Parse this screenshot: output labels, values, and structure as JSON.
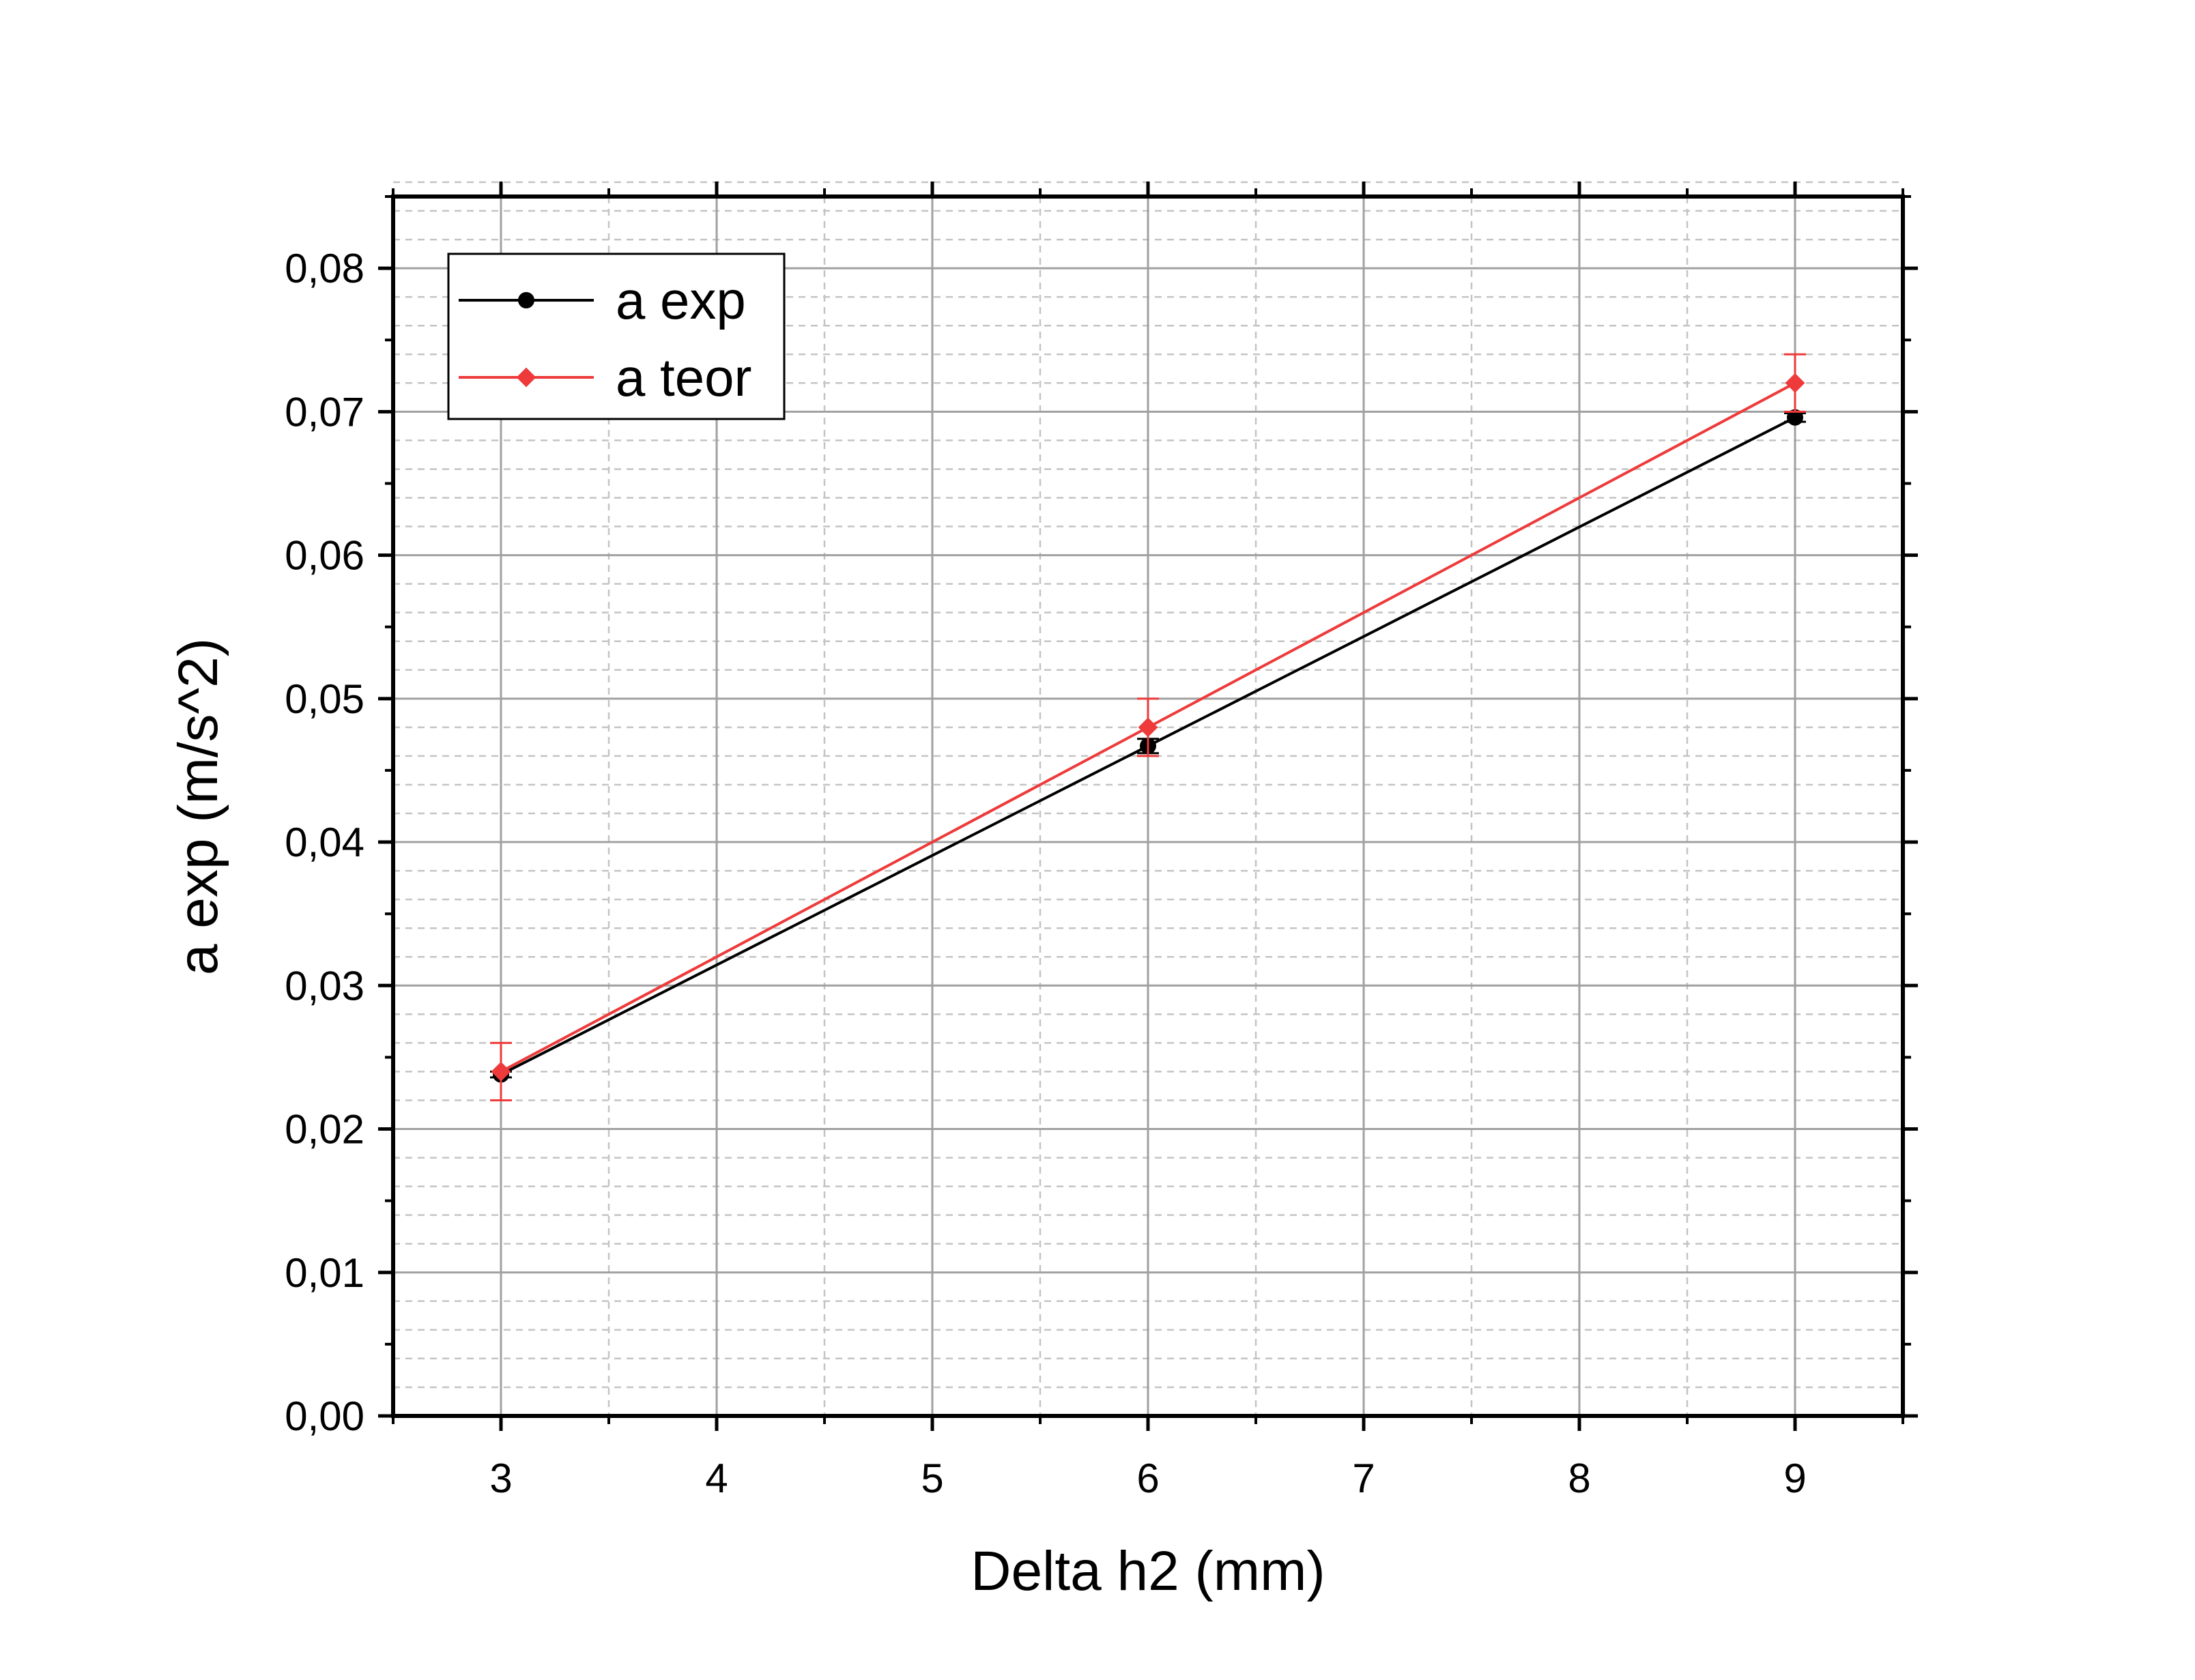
{
  "chart_data": {
    "type": "line",
    "title": "",
    "xlabel": "Delta h2 (mm)",
    "ylabel": "a exp (m/s^2)",
    "xlim": [
      2.5,
      9.5
    ],
    "ylim": [
      0,
      0.085
    ],
    "x_ticks": [
      3,
      4,
      5,
      6,
      7,
      8,
      9
    ],
    "x_tick_labels": [
      "3",
      "4",
      "5",
      "6",
      "7",
      "8",
      "9"
    ],
    "y_ticks": [
      0,
      0.01,
      0.02,
      0.03,
      0.04,
      0.05,
      0.06,
      0.07,
      0.08
    ],
    "y_tick_labels": [
      "0,00",
      "0,01",
      "0,02",
      "0,03",
      "0,04",
      "0,05",
      "0,06",
      "0,07",
      "0,08"
    ],
    "grid": true,
    "legend_position": "top-left",
    "series": [
      {
        "name": "a exp",
        "color": "#000000",
        "marker": "circle",
        "x": [
          3,
          6,
          9
        ],
        "y": [
          0.0238,
          0.0467,
          0.0696
        ],
        "error": [
          0.0002,
          0.0005,
          0.0003
        ]
      },
      {
        "name": "a teor",
        "color": "#ee3a3a",
        "marker": "diamond",
        "x": [
          3,
          6,
          9
        ],
        "y": [
          0.024,
          0.048,
          0.072
        ],
        "error": [
          0.002,
          0.002,
          0.002
        ]
      }
    ]
  }
}
